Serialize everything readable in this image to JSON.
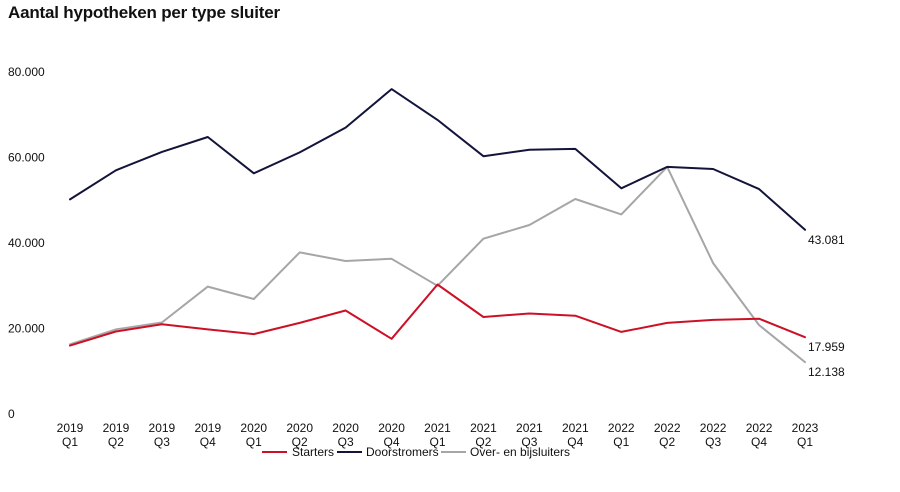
{
  "chart_data": {
    "type": "line",
    "title": "Aantal hypotheken per type sluiter",
    "xlabel": "",
    "ylabel": "",
    "ylim": [
      0,
      80000
    ],
    "y_ticks": [
      0,
      20000,
      40000,
      60000,
      80000
    ],
    "y_tick_labels": [
      "0",
      "20.000",
      "40.000",
      "60.000",
      "80.000"
    ],
    "categories": [
      [
        "2019",
        "Q1"
      ],
      [
        "2019",
        "Q2"
      ],
      [
        "2019",
        "Q3"
      ],
      [
        "2019",
        "Q4"
      ],
      [
        "2020",
        "Q1"
      ],
      [
        "2020",
        "Q2"
      ],
      [
        "2020",
        "Q3"
      ],
      [
        "2020",
        "Q4"
      ],
      [
        "2021",
        "Q1"
      ],
      [
        "2021",
        "Q2"
      ],
      [
        "2021",
        "Q3"
      ],
      [
        "2021",
        "Q4"
      ],
      [
        "2022",
        "Q1"
      ],
      [
        "2022",
        "Q2"
      ],
      [
        "2022",
        "Q3"
      ],
      [
        "2022",
        "Q4"
      ],
      [
        "2023",
        "Q1"
      ]
    ],
    "grid": false,
    "legend_position": "bottom-center",
    "series": [
      {
        "name": "Starters",
        "color": "#cc1126",
        "values": [
          16000,
          19300,
          21000,
          19800,
          18700,
          21300,
          24200,
          17600,
          30300,
          22700,
          23500,
          23000,
          19200,
          21300,
          22000,
          22300,
          17959
        ],
        "end_label": "17.959"
      },
      {
        "name": "Doorstromers",
        "color": "#12143a",
        "values": [
          50200,
          57000,
          61300,
          64800,
          56300,
          61200,
          67000,
          76000,
          68800,
          60300,
          61800,
          62000,
          52800,
          57800,
          57300,
          52600,
          43081
        ],
        "end_label": "43.081"
      },
      {
        "name": "Over- en bijsluiters",
        "color": "#a6a6a6",
        "values": [
          16300,
          19800,
          21400,
          29800,
          26900,
          37800,
          35800,
          36300,
          30000,
          41000,
          44200,
          50300,
          46700,
          57800,
          35300,
          20800,
          12138
        ],
        "end_label": "12.138"
      }
    ]
  }
}
